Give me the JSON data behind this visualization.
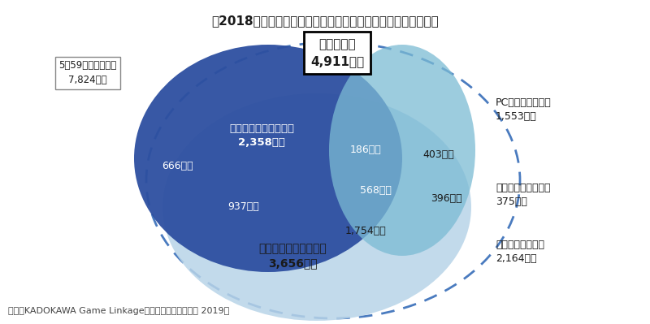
{
  "title": "。2018年国内　メインゲーム環境別　ゲームユーザー分布図〃",
  "subtitle_line1": "ゲーム人口",
  "subtitle_line2": "4,911万人",
  "outer_label_line1": "5～59歳（母集団）",
  "outer_label_line2": "7,824万人",
  "home_label_line1": "家庭用ゲームユーザー",
  "home_label_line2": "2,358万人",
  "app_label_line1": "アプリゲームユーザー",
  "app_label_line2": "3,656万人",
  "pc_right_line1": "PCゲームユーザー",
  "pc_right_line2": "1,553万人",
  "latent_line1": "ゲーム潜在ユーザー",
  "latent_line2": "375万人",
  "nongame_line1": "非ゲームユーザー",
  "nongame_line2": "2,164万人",
  "ann_666": "666万人",
  "ann_937": "937万人",
  "ann_186": "186万人",
  "ann_403": "403万人",
  "ann_568": "568万人",
  "ann_396": "396万人",
  "ann_1754": "1,754万人",
  "source": "資料：KADOKAWA Game Linkage「ファミ通ゲーム白書 2019」",
  "bg_color": "#ffffff",
  "text_dark": "#1a1a1a",
  "text_white": "#ffffff",
  "color_home": "#2d4fa0",
  "color_app": "#b8d4e8",
  "color_pc": "#7bbbd4",
  "color_dashed": "#4a7bbf"
}
